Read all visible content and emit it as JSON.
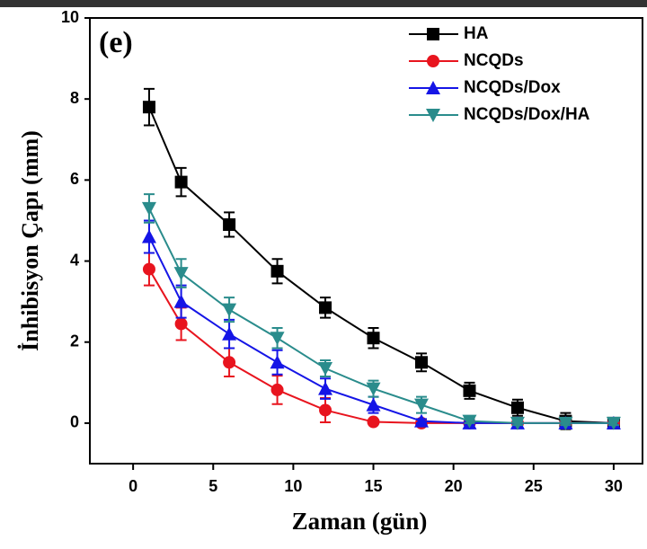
{
  "chart_data": {
    "type": "line",
    "annotation": "(e)",
    "x_label": "Zaman (gün)",
    "y_label": "İnhibisyon Çapı (mm)",
    "x": [
      1,
      3,
      6,
      9,
      12,
      15,
      18,
      21,
      24,
      27,
      30
    ],
    "series": [
      {
        "name": "HA",
        "color": "#000000",
        "marker": "square",
        "values": [
          7.8,
          5.95,
          4.9,
          3.75,
          2.85,
          2.1,
          1.5,
          0.8,
          0.38,
          0.05,
          0
        ],
        "errors": [
          0.45,
          0.35,
          0.3,
          0.3,
          0.25,
          0.25,
          0.22,
          0.2,
          0.2,
          0.2,
          0.05
        ]
      },
      {
        "name": "NCQDs",
        "color": "#e8141e",
        "marker": "circle",
        "values": [
          3.8,
          2.45,
          1.5,
          0.82,
          0.32,
          0.03,
          0,
          0,
          0,
          0,
          0
        ],
        "errors": [
          0.4,
          0.4,
          0.35,
          0.35,
          0.3,
          0.05,
          0.05,
          0.05,
          0.05,
          0.05,
          0.05
        ]
      },
      {
        "name": "NCQDs/Dox",
        "color": "#1515e6",
        "marker": "triangle-up",
        "values": [
          4.6,
          3.0,
          2.2,
          1.5,
          0.85,
          0.45,
          0.05,
          0,
          0,
          0,
          0
        ],
        "errors": [
          0.4,
          0.4,
          0.35,
          0.3,
          0.25,
          0.2,
          0.05,
          0.05,
          0.05,
          0.05,
          0.05
        ]
      },
      {
        "name": "NCQDs/Dox/HA",
        "color": "#2a8c8c",
        "marker": "triangle-down",
        "values": [
          5.3,
          3.7,
          2.8,
          2.1,
          1.35,
          0.85,
          0.45,
          0.05,
          0,
          0,
          0
        ],
        "errors": [
          0.35,
          0.35,
          0.3,
          0.25,
          0.2,
          0.2,
          0.2,
          0.05,
          0.05,
          0.05,
          0.05
        ]
      }
    ],
    "xlim": [
      -2.7,
      31.8
    ],
    "xticks": [
      0,
      5,
      10,
      15,
      20,
      25,
      30
    ],
    "ylim": [
      -1,
      10
    ],
    "yticks": [
      0,
      2,
      4,
      6,
      8,
      10
    ],
    "legend": "top-right"
  }
}
